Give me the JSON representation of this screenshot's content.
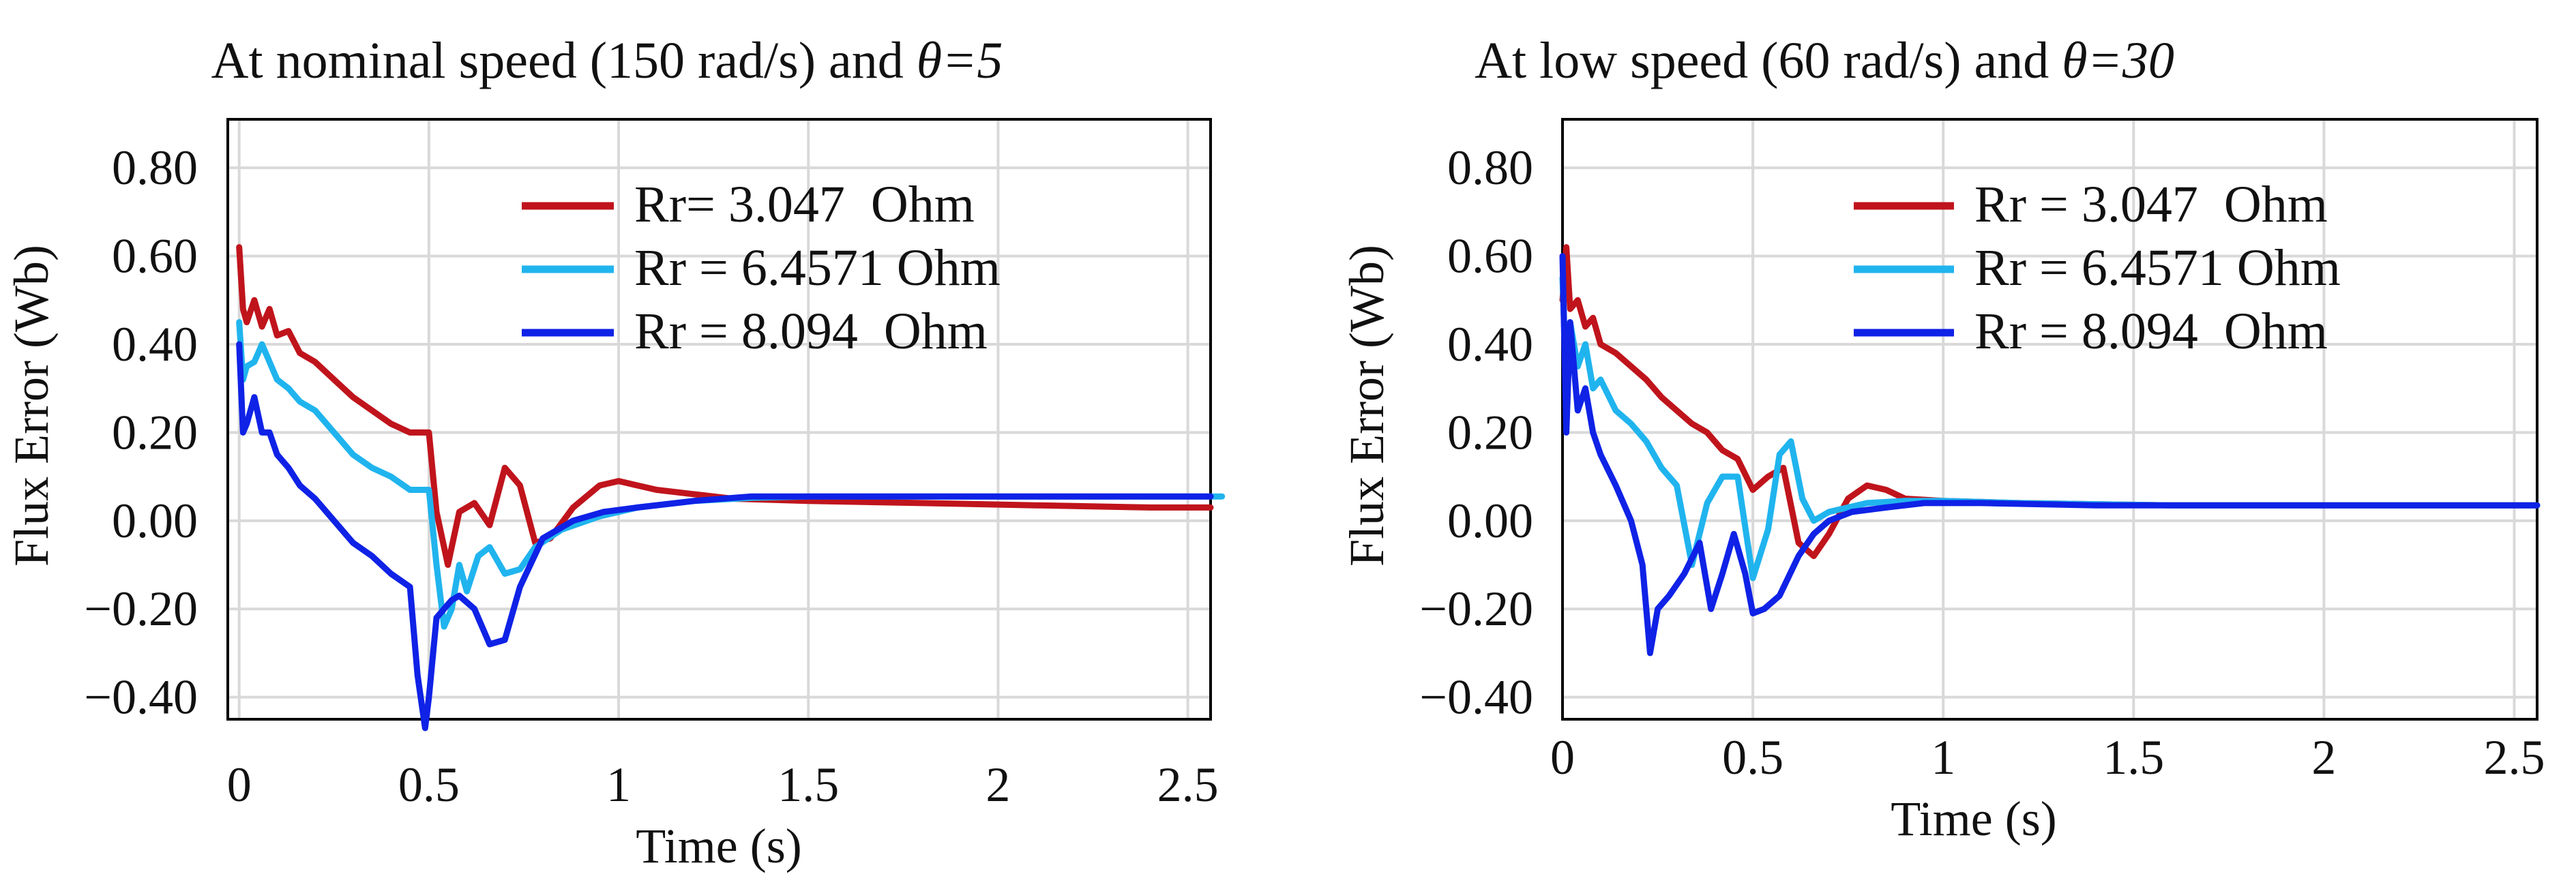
{
  "figure": {
    "name": "flux-error-comparison"
  },
  "chart_data": [
    {
      "type": "line",
      "title": "At nominal speed (150 rad/s) and θ=5",
      "title_parts": {
        "main": "At nominal speed (150 rad/s) and ",
        "symbol": "θ=5"
      },
      "xlabel": "Time (s)",
      "ylabel": "Flux Error (Wb)",
      "xlim": [
        -0.03,
        2.56
      ],
      "ylim": [
        -0.45,
        0.91
      ],
      "xticks": [
        0,
        0.5,
        1,
        1.5,
        2,
        2.5
      ],
      "xtick_labels": [
        "0",
        "0.5",
        "1",
        "1.5",
        "2",
        "2.5"
      ],
      "yticks": [
        0.8,
        0.6,
        0.4,
        0.2,
        0.0,
        -0.2,
        -0.4
      ],
      "ytick_labels": [
        "0.80",
        "0.60",
        "0.40",
        "0.20",
        "0.00",
        "−0.20",
        "−0.40"
      ],
      "grid": true,
      "legend_position": "top-right",
      "series": [
        {
          "name": "Rr= 3.047  Ohm",
          "color": "#c0141c",
          "x": [
            0,
            0.01,
            0.02,
            0.04,
            0.06,
            0.08,
            0.1,
            0.13,
            0.16,
            0.2,
            0.25,
            0.3,
            0.35,
            0.4,
            0.45,
            0.5,
            0.52,
            0.55,
            0.58,
            0.62,
            0.66,
            0.7,
            0.74,
            0.78,
            0.82,
            0.88,
            0.95,
            1.0,
            1.05,
            1.1,
            1.2,
            1.3,
            1.5,
            1.8,
            2.1,
            2.4,
            2.56
          ],
          "y": [
            0.62,
            0.48,
            0.45,
            0.5,
            0.44,
            0.48,
            0.42,
            0.43,
            0.38,
            0.36,
            0.32,
            0.28,
            0.25,
            0.22,
            0.2,
            0.2,
            0.02,
            -0.1,
            0.02,
            0.04,
            -0.01,
            0.12,
            0.08,
            -0.05,
            -0.04,
            0.03,
            0.08,
            0.09,
            0.08,
            0.07,
            0.06,
            0.05,
            0.045,
            0.04,
            0.035,
            0.03,
            0.03
          ]
        },
        {
          "name": "Rr = 6.4571 Ohm",
          "color": "#20b4ee",
          "x": [
            0,
            0.01,
            0.02,
            0.04,
            0.06,
            0.08,
            0.1,
            0.13,
            0.16,
            0.2,
            0.25,
            0.3,
            0.35,
            0.4,
            0.45,
            0.5,
            0.52,
            0.54,
            0.56,
            0.58,
            0.6,
            0.63,
            0.66,
            0.7,
            0.74,
            0.78,
            0.85,
            0.95,
            1.05,
            1.2,
            1.35,
            1.5,
            1.8,
            2.1,
            2.4,
            2.59
          ],
          "y": [
            0.45,
            0.32,
            0.35,
            0.36,
            0.4,
            0.36,
            0.32,
            0.3,
            0.27,
            0.25,
            0.2,
            0.15,
            0.12,
            0.1,
            0.07,
            0.07,
            -0.1,
            -0.24,
            -0.2,
            -0.1,
            -0.16,
            -0.08,
            -0.06,
            -0.12,
            -0.11,
            -0.06,
            -0.02,
            0.01,
            0.03,
            0.045,
            0.052,
            0.055,
            0.055,
            0.055,
            0.055,
            0.055
          ]
        },
        {
          "name": "Rr = 8.094  Ohm",
          "color": "#0f22e6",
          "x": [
            0,
            0.01,
            0.02,
            0.04,
            0.06,
            0.08,
            0.1,
            0.13,
            0.16,
            0.2,
            0.25,
            0.3,
            0.35,
            0.4,
            0.45,
            0.47,
            0.49,
            0.5,
            0.52,
            0.54,
            0.56,
            0.58,
            0.62,
            0.66,
            0.7,
            0.74,
            0.8,
            0.88,
            0.96,
            1.05,
            1.2,
            1.35,
            1.5,
            1.8,
            2.1,
            2.4,
            2.56
          ],
          "y": [
            0.4,
            0.2,
            0.22,
            0.28,
            0.2,
            0.2,
            0.15,
            0.12,
            0.08,
            0.05,
            0.0,
            -0.05,
            -0.08,
            -0.12,
            -0.15,
            -0.35,
            -0.47,
            -0.4,
            -0.22,
            -0.2,
            -0.18,
            -0.17,
            -0.2,
            -0.28,
            -0.27,
            -0.15,
            -0.04,
            0.0,
            0.02,
            0.03,
            0.045,
            0.055,
            0.055,
            0.055,
            0.055,
            0.055,
            0.055
          ]
        }
      ]
    },
    {
      "type": "line",
      "title": "At low speed (60 rad/s) and θ=30",
      "title_parts": {
        "main": "At low speed (60 rad/s) and ",
        "symbol": "θ=30"
      },
      "xlabel": "Time (s)",
      "ylabel": "Flux Error (Wb)",
      "xlim": [
        0,
        2.56
      ],
      "ylim": [
        -0.45,
        0.91
      ],
      "xticks": [
        0,
        0.5,
        1,
        1.5,
        2,
        2.5
      ],
      "xtick_labels": [
        "0",
        "0.5",
        "1",
        "1.5",
        "2",
        "2.5"
      ],
      "yticks": [
        0.8,
        0.6,
        0.4,
        0.2,
        0.0,
        -0.2,
        -0.4
      ],
      "ytick_labels": [
        "0.80",
        "0.60",
        "0.40",
        "0.20",
        "0.00",
        "−0.20",
        "−0.40"
      ],
      "grid": true,
      "legend_position": "top-right",
      "series": [
        {
          "name": "Rr = 3.047  Ohm",
          "color": "#c0141c",
          "x": [
            0,
            0.01,
            0.02,
            0.04,
            0.06,
            0.08,
            0.1,
            0.14,
            0.18,
            0.22,
            0.26,
            0.3,
            0.34,
            0.38,
            0.42,
            0.46,
            0.5,
            0.54,
            0.58,
            0.62,
            0.66,
            0.7,
            0.75,
            0.8,
            0.85,
            0.9,
            1.0,
            1.2,
            1.6,
            2.0,
            2.56
          ],
          "y": [
            0.5,
            0.62,
            0.48,
            0.5,
            0.44,
            0.46,
            0.4,
            0.38,
            0.35,
            0.32,
            0.28,
            0.25,
            0.22,
            0.2,
            0.16,
            0.14,
            0.07,
            0.1,
            0.12,
            -0.05,
            -0.08,
            -0.03,
            0.05,
            0.08,
            0.07,
            0.05,
            0.045,
            0.04,
            0.035,
            0.035,
            0.035
          ]
        },
        {
          "name": "Rr = 6.4571 Ohm",
          "color": "#20b4ee",
          "x": [
            0,
            0.01,
            0.02,
            0.04,
            0.06,
            0.08,
            0.1,
            0.14,
            0.18,
            0.22,
            0.26,
            0.3,
            0.34,
            0.38,
            0.42,
            0.46,
            0.5,
            0.54,
            0.57,
            0.6,
            0.63,
            0.66,
            0.7,
            0.75,
            0.8,
            0.9,
            1.0,
            1.2,
            1.6,
            2.0,
            2.56
          ],
          "y": [
            0.55,
            0.3,
            0.45,
            0.35,
            0.4,
            0.3,
            0.32,
            0.25,
            0.22,
            0.18,
            0.12,
            0.08,
            -0.1,
            0.04,
            0.1,
            0.1,
            -0.13,
            -0.02,
            0.15,
            0.18,
            0.05,
            0.0,
            0.02,
            0.03,
            0.04,
            0.045,
            0.045,
            0.04,
            0.035,
            0.035,
            0.035
          ]
        },
        {
          "name": "Rr = 8.094  Ohm",
          "color": "#0f22e6",
          "x": [
            0,
            0.01,
            0.02,
            0.04,
            0.06,
            0.08,
            0.1,
            0.14,
            0.18,
            0.21,
            0.23,
            0.25,
            0.28,
            0.32,
            0.36,
            0.39,
            0.42,
            0.45,
            0.48,
            0.5,
            0.53,
            0.57,
            0.62,
            0.66,
            0.7,
            0.76,
            0.85,
            0.95,
            1.1,
            1.4,
            2.0,
            2.56
          ],
          "y": [
            0.6,
            0.2,
            0.45,
            0.25,
            0.3,
            0.2,
            0.15,
            0.08,
            0.0,
            -0.1,
            -0.3,
            -0.2,
            -0.17,
            -0.12,
            -0.05,
            -0.2,
            -0.12,
            -0.03,
            -0.12,
            -0.21,
            -0.2,
            -0.17,
            -0.08,
            -0.03,
            0.0,
            0.02,
            0.03,
            0.04,
            0.04,
            0.035,
            0.035,
            0.035
          ]
        }
      ]
    }
  ]
}
